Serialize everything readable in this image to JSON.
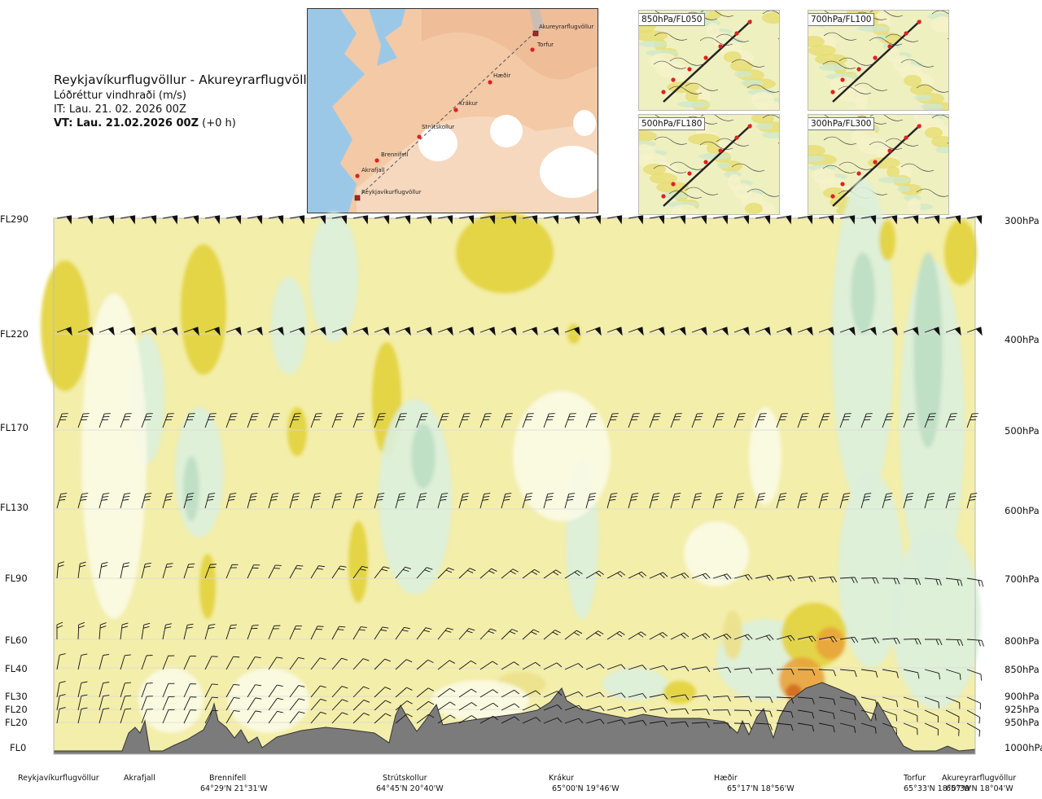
{
  "header": {
    "route": "Reykjavíkurflugvöllur - Akureyrarflugvöllur",
    "quantity": "Lóðréttur vindhraði (m/s)",
    "it": "IT: Lau. 21. 02. 2026 00Z",
    "vt_bold": "VT: Lau. 21.02.2026 00Z",
    "vt_rest": " (+0 h)"
  },
  "map": {
    "waypoints": [
      "Reykjavíkurflugvöllur",
      "Akrafjall",
      "Brennifell",
      "Strútskollur",
      "Krákur",
      "Hæðir",
      "Torfur",
      "Akureyrarflugvöllur"
    ]
  },
  "insets": [
    "850hPa/FL050",
    "700hPa/FL100",
    "500hPa/FL180",
    "300hPa/FL300"
  ],
  "levels": [
    {
      "fl": "FL290",
      "p": "300hPa"
    },
    {
      "fl": "FL220",
      "p": "400hPa"
    },
    {
      "fl": "FL170",
      "p": "500hPa"
    },
    {
      "fl": "FL130",
      "p": "600hPa"
    },
    {
      "fl": "FL90",
      "p": "700hPa"
    },
    {
      "fl": "FL60",
      "p": "800hPa"
    },
    {
      "fl": "FL40",
      "p": "850hPa"
    },
    {
      "fl": "FL30",
      "p": "900hPa"
    },
    {
      "fl": "FL20",
      "p": "925hPa"
    },
    {
      "fl": "FL20",
      "p": "950hPa"
    },
    {
      "fl": "FL0",
      "p": "1000hPa"
    }
  ],
  "stations": [
    {
      "name": "Reykjavíkurflugvöllur",
      "coord": ""
    },
    {
      "name": "Akrafjall",
      "coord": ""
    },
    {
      "name": "Brennifell",
      "coord": "64°29'N 21°31'W"
    },
    {
      "name": "Strútskollur",
      "coord": "64°45'N 20°40'W"
    },
    {
      "name": "Krákur",
      "coord": "65°00'N 19°46'W"
    },
    {
      "name": "Hæðir",
      "coord": "65°17'N 18°56'W"
    },
    {
      "name": "Torfur",
      "coord": "65°33'N 18°07'W"
    },
    {
      "name": "Akureyrarflugvöllur",
      "coord": "65°39'N 18°04'W"
    }
  ],
  "colors": {
    "near_zero": "#f3eeaa",
    "weak_up": "#ece08a",
    "up": "#e2d23b",
    "strong_up": "#e9a33a",
    "very_strong_up": "#d26a1e",
    "neutral": "#fbfbe6",
    "weak_down": "#dcefdc",
    "down": "#bddfc4",
    "strong_down": "#9fcaa8",
    "terrain": "#7b7b7b"
  },
  "chart_data": {
    "type": "heatmap",
    "title": "Reykjavíkurflugvöllur - Akureyrarflugvöllur",
    "quantity": "Lóðréttur vindhraði (m/s)",
    "x_stations": [
      "Reykjavíkurflugvöllur",
      "Akrafjall",
      "Brennifell",
      "Strútskollur",
      "Krákur",
      "Hæðir",
      "Torfur",
      "Akureyrarflugvöllur"
    ],
    "y_levels_hPa": [
      300,
      400,
      500,
      600,
      700,
      800,
      850,
      900,
      925,
      950,
      1000
    ],
    "y_levels_FL": [
      "FL290",
      "FL220",
      "FL170",
      "FL130",
      "FL90",
      "FL60",
      "FL40",
      "FL30",
      "FL20",
      "FL20",
      "FL0"
    ],
    "legend": "none",
    "wind_barbs": true,
    "terrain_profile": true
  }
}
